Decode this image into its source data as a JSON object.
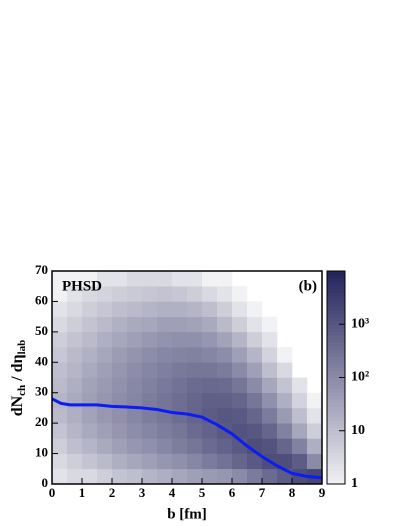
{
  "chart_data": {
    "type": "heatmap",
    "annotation": "PHSD",
    "panel_label": "(b)",
    "xlabel": "b [fm]",
    "ylabel": [
      "dN",
      "ch",
      " / dη",
      "lab"
    ],
    "xlim": [
      0,
      9
    ],
    "ylim": [
      0,
      70
    ],
    "xticks": [
      0,
      1,
      2,
      3,
      4,
      5,
      6,
      7,
      8,
      9
    ],
    "yticks": [
      0,
      10,
      20,
      30,
      40,
      50,
      60,
      70
    ],
    "xbins": [
      0,
      0.5,
      1,
      1.5,
      2,
      2.5,
      3,
      3.5,
      4,
      4.5,
      5,
      5.5,
      6,
      6.5,
      7,
      7.5,
      8,
      8.5,
      9
    ],
    "ybins": [
      0,
      5,
      10,
      15,
      20,
      25,
      30,
      35,
      40,
      45,
      50,
      55,
      60,
      65,
      70
    ],
    "z": [
      [
        2,
        3,
        3,
        5,
        8,
        10,
        15,
        20,
        30,
        40,
        50,
        60,
        100,
        200,
        400,
        800,
        1500,
        2000
      ],
      [
        3,
        5,
        8,
        12,
        20,
        30,
        40,
        60,
        80,
        120,
        200,
        300,
        500,
        900,
        1500,
        1500,
        800,
        100
      ],
      [
        5,
        10,
        15,
        25,
        40,
        60,
        80,
        120,
        180,
        250,
        400,
        600,
        900,
        1500,
        1200,
        500,
        150,
        20
      ],
      [
        8,
        15,
        25,
        40,
        60,
        90,
        130,
        180,
        250,
        400,
        600,
        900,
        1200,
        1000,
        500,
        150,
        30,
        5
      ],
      [
        12,
        20,
        35,
        55,
        80,
        120,
        180,
        250,
        350,
        550,
        800,
        1000,
        900,
        500,
        200,
        50,
        10,
        2
      ],
      [
        15,
        25,
        40,
        60,
        90,
        130,
        190,
        260,
        360,
        500,
        700,
        700,
        500,
        250,
        80,
        20,
        4,
        1
      ],
      [
        12,
        20,
        35,
        50,
        75,
        110,
        160,
        220,
        300,
        400,
        450,
        400,
        250,
        100,
        30,
        8,
        2,
        null
      ],
      [
        10,
        15,
        25,
        40,
        60,
        90,
        130,
        170,
        220,
        250,
        250,
        200,
        100,
        40,
        10,
        3,
        null,
        null
      ],
      [
        7,
        12,
        18,
        30,
        45,
        65,
        90,
        120,
        140,
        150,
        130,
        90,
        40,
        15,
        4,
        1,
        null,
        null
      ],
      [
        5,
        8,
        12,
        20,
        30,
        40,
        55,
        70,
        80,
        80,
        60,
        35,
        15,
        5,
        2,
        null,
        null,
        null
      ],
      [
        3,
        5,
        8,
        12,
        18,
        25,
        30,
        40,
        40,
        35,
        25,
        12,
        5,
        2,
        1,
        null,
        null,
        null
      ],
      [
        2,
        3,
        5,
        7,
        10,
        12,
        15,
        18,
        18,
        15,
        10,
        5,
        2,
        1,
        null,
        null,
        null,
        null
      ],
      [
        1,
        2,
        3,
        4,
        5,
        6,
        7,
        8,
        7,
        5,
        3,
        2,
        1,
        null,
        null,
        null,
        null,
        null
      ],
      [
        1,
        1,
        1,
        2,
        2,
        3,
        3,
        3,
        2,
        2,
        1,
        1,
        null,
        null,
        null,
        null,
        null,
        null
      ]
    ],
    "colormap": [
      "#f2f2f4",
      "#23235c"
    ],
    "clim": [
      1,
      10000
    ],
    "clog": true,
    "cticks": [
      1,
      10,
      {
        "value": 100,
        "label": "10²"
      },
      {
        "value": 1000,
        "label": "10³"
      }
    ],
    "series": [
      {
        "color": "#0b1cf5",
        "x": [
          0,
          0.3,
          0.6,
          1,
          1.5,
          2,
          2.5,
          3,
          3.5,
          4,
          4.5,
          5,
          5.5,
          6,
          6.5,
          7,
          7.5,
          8,
          8.5,
          9
        ],
        "values": [
          28,
          26.5,
          26,
          26,
          26,
          25.5,
          25.3,
          25,
          24.5,
          23.5,
          23,
          22,
          19.5,
          16.5,
          12.5,
          9,
          6,
          3.5,
          2.5,
          2
        ]
      }
    ]
  }
}
